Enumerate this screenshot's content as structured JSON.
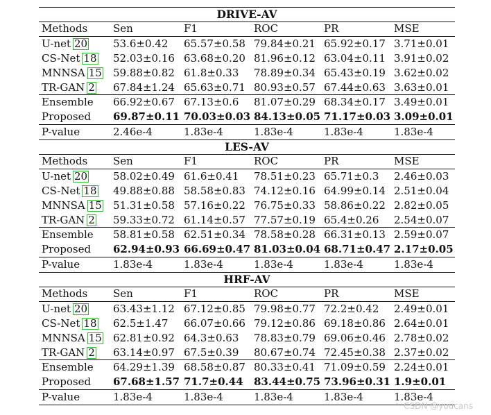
{
  "columns": [
    "Methods",
    "Sen",
    "F1",
    "ROC",
    "PR",
    "MSE"
  ],
  "sections": [
    {
      "title": "DRIVE-AV",
      "rows": [
        {
          "method": "U-net",
          "ref": "20",
          "values": [
            "53.6±0.42",
            "65.57±0.58",
            "79.84±0.21",
            "65.92±0.17",
            "3.71±0.01"
          ]
        },
        {
          "method": "CS-Net",
          "ref": "18",
          "values": [
            "52.03±0.16",
            "63.68±0.20",
            "81.96±0.12",
            "63.04±0.11",
            "3.91±0.02"
          ]
        },
        {
          "method": "MNNSA",
          "ref": "15",
          "values": [
            "59.88±0.82",
            "61.8±0.33",
            "78.89±0.34",
            "65.43±0.19",
            "3.62±0.02"
          ]
        },
        {
          "method": "TR-GAN",
          "ref": "2",
          "values": [
            "67.84±1.24",
            "65.63±0.71",
            "80.93±0.57",
            "67.44±0.63",
            "3.63±0.01"
          ]
        },
        {
          "method": "Ensemble",
          "ref": "",
          "values": [
            "66.92±0.67",
            "67.13±0.6",
            "81.07±0.29",
            "68.34±0.17",
            "3.49±0.01"
          ]
        },
        {
          "method": "Proposed",
          "ref": "",
          "values": [
            "69.87±0.11",
            "70.03±0.03",
            "84.13±0.05",
            "71.17±0.03",
            "3.09±0.01"
          ]
        },
        {
          "method": "P-value",
          "ref": "",
          "values": [
            "2.46e-4",
            "1.83e-4",
            "1.83e-4",
            "1.83e-4",
            "1.83e-4"
          ]
        }
      ]
    },
    {
      "title": "LES-AV",
      "rows": [
        {
          "method": "U-net",
          "ref": "20",
          "values": [
            "58.02±0.49",
            "61.6±0.41",
            "78.51±0.23",
            "65.71±0.3",
            "2.46±0.03"
          ]
        },
        {
          "method": "CS-Net",
          "ref": "18",
          "values": [
            "49.88±0.88",
            "58.58±0.83",
            "74.12±0.16",
            "64.99±0.14",
            "2.51±0.04"
          ]
        },
        {
          "method": "MNNSA",
          "ref": "15",
          "values": [
            "51.31±0.58",
            "57.16±0.22",
            "76.75±0.33",
            "58.86±0.22",
            "2.82±0.05"
          ]
        },
        {
          "method": "TR-GAN",
          "ref": "2",
          "values": [
            "59.33±0.72",
            "61.14±0.57",
            "77.57±0.19",
            "65.4±0.26",
            "2.54±0.07"
          ]
        },
        {
          "method": "Ensemble",
          "ref": "",
          "values": [
            "58.81±0.58",
            "62.51±0.34",
            "78.58±0.28",
            "66.31±0.13",
            "2.59±0.07"
          ]
        },
        {
          "method": "Proposed",
          "ref": "",
          "values": [
            "62.94±0.93",
            "66.69±0.47",
            "81.03±0.04",
            "68.71±0.47",
            "2.17±0.05"
          ]
        },
        {
          "method": "P-value",
          "ref": "",
          "values": [
            "1.83e-4",
            "1.83e-4",
            "1.83e-4",
            "1.83e-4",
            "1.83e-4"
          ]
        }
      ]
    },
    {
      "title": "HRF-AV",
      "rows": [
        {
          "method": "U-net",
          "ref": "20",
          "values": [
            "63.43±1.12",
            "67.12±0.85",
            "79.98±0.77",
            "72.2±0.42",
            "2.49±0.01"
          ]
        },
        {
          "method": "CS-Net",
          "ref": "18",
          "values": [
            "62.5±1.47",
            "66.07±0.66",
            "79.12±0.86",
            "69.18±0.86",
            "2.64±0.01"
          ]
        },
        {
          "method": "MNNSA",
          "ref": "15",
          "values": [
            "62.81±0.92",
            "64.3±0.63",
            "78.83±0.79",
            "69.06±0.46",
            "2.78±0.02"
          ]
        },
        {
          "method": "TR-GAN",
          "ref": "2",
          "values": [
            "63.14±0.97",
            "67.5±0.39",
            "80.67±0.74",
            "72.45±0.38",
            "2.37±0.02"
          ]
        },
        {
          "method": "Ensemble",
          "ref": "",
          "values": [
            "64.29±1.39",
            "68.58±0.87",
            "80.33±0.41",
            "71.09±0.59",
            "2.24±0.01"
          ]
        },
        {
          "method": "Proposed",
          "ref": "",
          "values": [
            "67.68±1.57",
            "71.7±0.44",
            "83.44±0.75",
            "73.96±0.31",
            "1.9±0.01"
          ]
        },
        {
          "method": "P-value",
          "ref": "",
          "values": [
            "1.83e-4",
            "1.83e-4",
            "1.83e-4",
            "1.83e-4",
            "1.83e-4"
          ]
        }
      ]
    }
  ],
  "watermark": "CSDN @youcans"
}
